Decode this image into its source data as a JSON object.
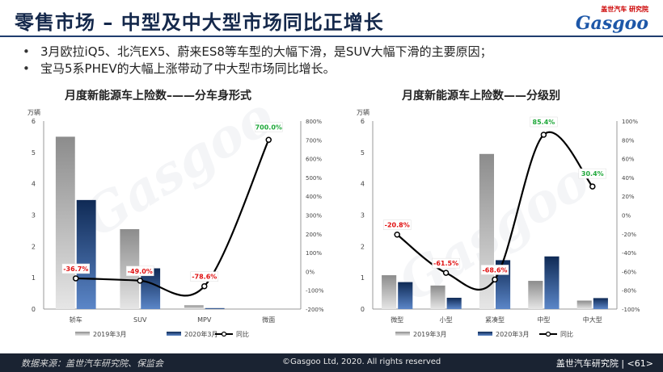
{
  "header": {
    "title": "零售市场 – 中型及中大型市场同比正增长",
    "logo_small": "盖世汽车 研究院",
    "logo_main": "Gasgoo"
  },
  "bullets": [
    "3月欧拉iQ5、北汽EX5、蔚来ES8等车型的大幅下滑，是SUV大幅下滑的主要原因；",
    "宝马5系PHEV的大幅上涨带动了中大型市场同比增长。"
  ],
  "footer": {
    "source": "数据来源：盖世汽车研究院、保监会",
    "copyright": "©Gasgoo Ltd, 2020. All rights reserved",
    "institute": "盖世汽车研究院 | <61>"
  },
  "colors": {
    "bar_2019": "#9a9a9a",
    "bar_2020": "#1c3b6e",
    "line": "#000000",
    "label_neg": "#e01010",
    "label_pos": "#1fa83a"
  },
  "chart_data": [
    {
      "type": "bar",
      "title": "月度新能源车上险数–——分车身形式",
      "unit": "万辆",
      "categories": [
        "轿车",
        "SUV",
        "MPV",
        "微面"
      ],
      "series": [
        {
          "name": "2019年3月",
          "values": [
            5.5,
            2.55,
            0.12,
            0
          ]
        },
        {
          "name": "2020年3月",
          "values": [
            3.48,
            1.3,
            0.03,
            0
          ]
        }
      ],
      "line": {
        "name": "同比",
        "values": [
          -36.7,
          -49.0,
          -78.6,
          700.0
        ],
        "labels": [
          "-36.7%",
          "-49.0%",
          "-78.6%",
          "700.0%"
        ]
      },
      "ylim": [
        0,
        6
      ],
      "yticks": [
        "0",
        "1",
        "2",
        "3",
        "4",
        "5",
        "6"
      ],
      "y2lim": [
        -200,
        800
      ],
      "y2ticks": [
        "-200%",
        "-100%",
        "0%",
        "100%",
        "200%",
        "300%",
        "400%",
        "500%",
        "600%",
        "700%",
        "800%"
      ],
      "legend": "bottom"
    },
    {
      "type": "bar",
      "title": "月度新能源车上险数——分级别",
      "unit": "万辆",
      "categories": [
        "微型",
        "小型",
        "紧凑型",
        "中型",
        "中大型"
      ],
      "series": [
        {
          "name": "2019年3月",
          "values": [
            1.08,
            0.75,
            4.95,
            0.9,
            0.27
          ]
        },
        {
          "name": "2020年3月",
          "values": [
            0.86,
            0.36,
            1.56,
            1.68,
            0.35
          ]
        }
      ],
      "line": {
        "name": "同比",
        "values": [
          -20.8,
          -61.5,
          -68.6,
          85.4,
          30.4
        ],
        "labels": [
          "-20.8%",
          "-61.5%",
          "-68.6%",
          "85.4%",
          "30.4%"
        ]
      },
      "ylim": [
        0,
        6
      ],
      "yticks": [
        "0",
        "1",
        "2",
        "3",
        "4",
        "5",
        "6"
      ],
      "y2lim": [
        -100,
        100
      ],
      "y2ticks": [
        "-100%",
        "-80%",
        "-60%",
        "-40%",
        "-20%",
        "0%",
        "20%",
        "40%",
        "60%",
        "80%",
        "100%"
      ],
      "legend": "bottom"
    }
  ]
}
